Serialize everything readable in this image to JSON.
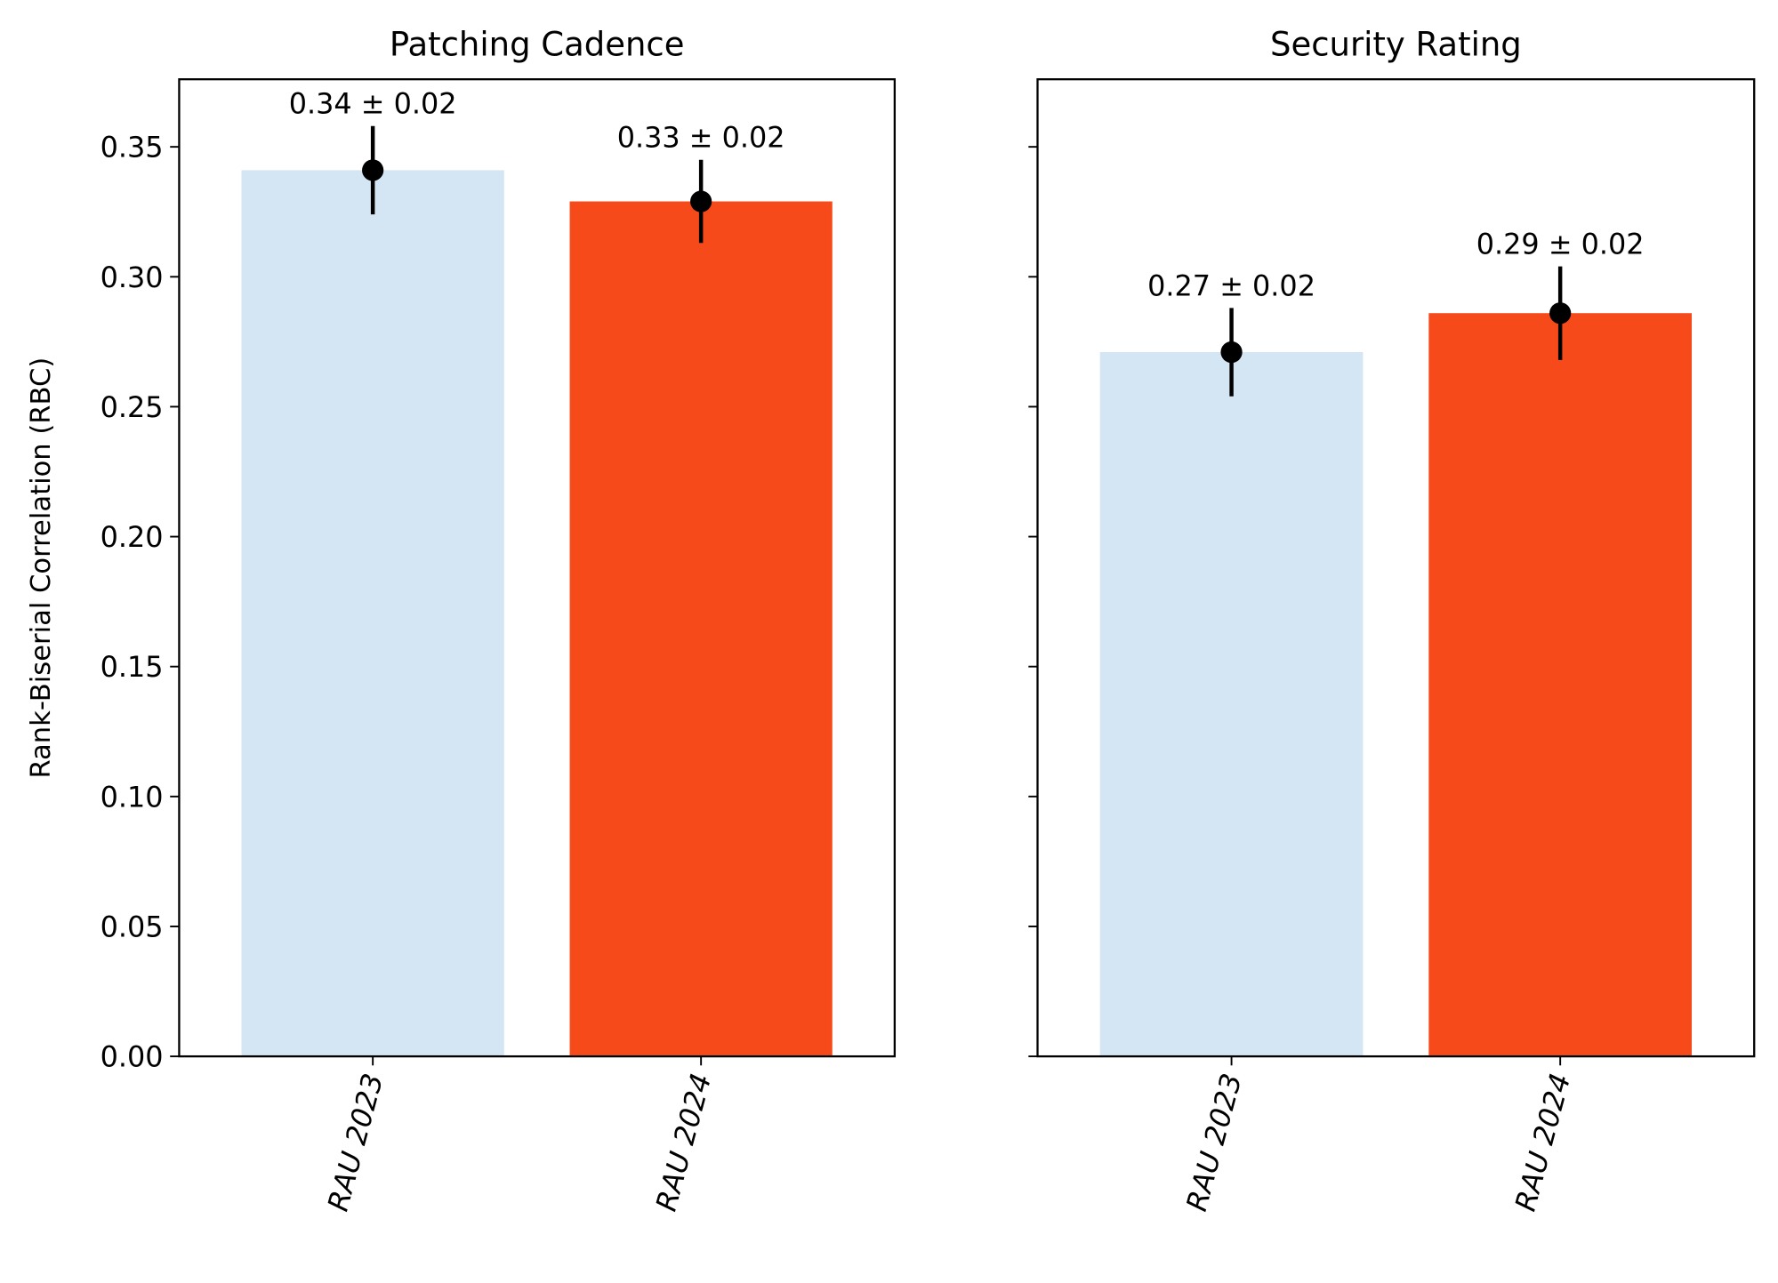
{
  "chart_data": [
    {
      "type": "bar",
      "title": "Patching Cadence",
      "ylabel": "Rank-Biserial Correlation (RBC)",
      "xlabel": "",
      "ylim": [
        0,
        0.376
      ],
      "yticks": [
        "0.00",
        "0.05",
        "0.10",
        "0.15",
        "0.20",
        "0.25",
        "0.30",
        "0.35"
      ],
      "categories": [
        "RAU 2023",
        "RAU 2024"
      ],
      "values": [
        0.341,
        0.329
      ],
      "errors": [
        0.017,
        0.016
      ],
      "labels": [
        "0.34 ± 0.02",
        "0.33 ± 0.02"
      ],
      "colors": [
        "#d4e5f3",
        "#f74a1a"
      ],
      "grid": false
    },
    {
      "type": "bar",
      "title": "Security Rating",
      "ylabel": "",
      "xlabel": "",
      "ylim": [
        0,
        0.376
      ],
      "shared_y": true,
      "categories": [
        "RAU 2023",
        "RAU 2024"
      ],
      "values": [
        0.271,
        0.286
      ],
      "errors": [
        0.017,
        0.018
      ],
      "labels": [
        "0.27 ± 0.02",
        "0.29 ± 0.02"
      ],
      "colors": [
        "#d4e5f3",
        "#f74a1a"
      ],
      "grid": false
    }
  ]
}
